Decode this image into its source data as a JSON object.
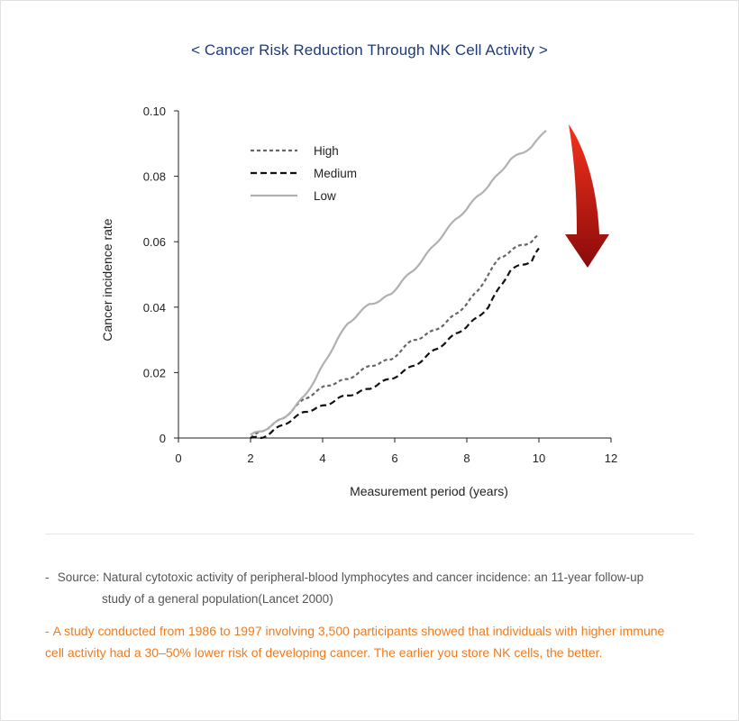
{
  "title": "< Cancer Risk Reduction Through NK Cell Activity >",
  "source": {
    "dash": "-",
    "label": "Source:",
    "line1": "Natural cytotoxic activity of peripheral-blood lymphocytes and cancer incidence: an 11-year follow-up",
    "line2": "study of a general population(Lancet 2000)"
  },
  "note": {
    "dash": "-",
    "text": "A study conducted from 1986 to 1997 involving 3,500 participants showed that individuals with higher immune cell activity had a 30–50% lower risk of developing cancer. The earlier you store NK cells, the better."
  },
  "colors": {
    "title": "#1f3a78",
    "note": "#ef7b1f",
    "high": "#666666",
    "medium": "#111111",
    "low": "#b0b0b0",
    "arrow_top": "#f5321b",
    "arrow_bottom": "#8a0b0b"
  },
  "icons": {
    "trend": "down-arrow-icon"
  },
  "chart_data": {
    "type": "line",
    "xlabel": "Measurement period (years)",
    "ylabel": "Cancer incidence rate",
    "xlim": [
      0,
      12
    ],
    "ylim": [
      0,
      0.1
    ],
    "xticks": [
      "0",
      "2",
      "4",
      "6",
      "8",
      "10",
      "12"
    ],
    "xtick_values": [
      0,
      2,
      4,
      6,
      8,
      10,
      12
    ],
    "yticks": [
      "0",
      "0.02",
      "0.04",
      "0.06",
      "0.08",
      "0.10"
    ],
    "ytick_values": [
      0,
      0.02,
      0.04,
      0.06,
      0.08,
      0.1
    ],
    "legend_position": "top-left",
    "grid": false,
    "series": [
      {
        "name": "High",
        "style": "dotted",
        "x": [
          2.0,
          2.3,
          2.6,
          2.9,
          3.2,
          3.5,
          3.8,
          4.1,
          4.4,
          4.7,
          5.0,
          5.3,
          5.6,
          5.9,
          6.2,
          6.5,
          6.8,
          7.1,
          7.4,
          7.7,
          8.0,
          8.3,
          8.6,
          8.9,
          9.2,
          9.5,
          9.8,
          10.0
        ],
        "y": [
          0.0,
          0.002,
          0.004,
          0.006,
          0.009,
          0.012,
          0.014,
          0.016,
          0.017,
          0.018,
          0.02,
          0.022,
          0.023,
          0.024,
          0.027,
          0.03,
          0.031,
          0.033,
          0.035,
          0.038,
          0.041,
          0.045,
          0.05,
          0.055,
          0.057,
          0.059,
          0.06,
          0.062
        ]
      },
      {
        "name": "Medium",
        "style": "dashed",
        "x": [
          2.0,
          2.3,
          2.6,
          2.9,
          3.2,
          3.5,
          3.8,
          4.1,
          4.4,
          4.7,
          5.0,
          5.3,
          5.6,
          5.9,
          6.2,
          6.5,
          6.8,
          7.1,
          7.4,
          7.7,
          8.0,
          8.3,
          8.6,
          8.9,
          9.2,
          9.5,
          9.8,
          10.0
        ],
        "y": [
          0.0,
          0.0,
          0.002,
          0.004,
          0.006,
          0.008,
          0.009,
          0.01,
          0.012,
          0.013,
          0.014,
          0.015,
          0.017,
          0.018,
          0.02,
          0.022,
          0.024,
          0.027,
          0.029,
          0.032,
          0.034,
          0.037,
          0.04,
          0.046,
          0.051,
          0.053,
          0.054,
          0.058
        ]
      },
      {
        "name": "Low",
        "style": "solid",
        "x": [
          2.0,
          2.3,
          2.6,
          2.9,
          3.2,
          3.5,
          3.8,
          4.1,
          4.4,
          4.7,
          5.0,
          5.3,
          5.6,
          5.9,
          6.2,
          6.5,
          6.8,
          7.1,
          7.4,
          7.7,
          8.0,
          8.3,
          8.6,
          8.9,
          9.2,
          9.5,
          9.8,
          10.2
        ],
        "y": [
          0.001,
          0.002,
          0.004,
          0.006,
          0.009,
          0.013,
          0.018,
          0.024,
          0.03,
          0.035,
          0.038,
          0.041,
          0.042,
          0.044,
          0.048,
          0.051,
          0.055,
          0.059,
          0.063,
          0.067,
          0.07,
          0.074,
          0.077,
          0.081,
          0.085,
          0.087,
          0.089,
          0.094
        ]
      }
    ]
  }
}
